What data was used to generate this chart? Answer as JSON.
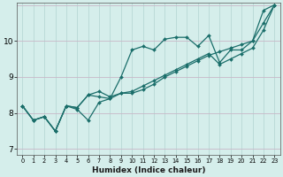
{
  "xlabel": "Humidex (Indice chaleur)",
  "background_color": "#d5eeeb",
  "grid_color_h": "#c8b8c8",
  "grid_color_v": "#b8d8d5",
  "line_color": "#1a6e6a",
  "xlim": [
    -0.5,
    23.5
  ],
  "ylim": [
    6.85,
    11.05
  ],
  "yticks": [
    7,
    8,
    9,
    10
  ],
  "xticks": [
    0,
    1,
    2,
    3,
    4,
    5,
    6,
    7,
    8,
    9,
    10,
    11,
    12,
    13,
    14,
    15,
    16,
    17,
    18,
    19,
    20,
    21,
    22,
    23
  ],
  "series": [
    [
      8.2,
      7.8,
      7.9,
      7.5,
      8.2,
      8.1,
      7.8,
      8.3,
      8.4,
      9.0,
      9.75,
      9.85,
      9.75,
      10.05,
      10.1,
      10.1,
      9.85,
      10.15,
      9.4,
      9.75,
      9.75,
      10.0,
      10.85,
      11.0
    ],
    [
      8.2,
      7.8,
      7.9,
      7.5,
      8.2,
      8.15,
      8.5,
      8.6,
      8.45,
      8.55,
      8.55,
      8.65,
      8.8,
      9.0,
      9.15,
      9.3,
      9.45,
      9.6,
      9.7,
      9.8,
      9.9,
      10.0,
      10.5,
      11.0
    ],
    [
      8.2,
      7.8,
      7.9,
      7.5,
      8.2,
      8.15,
      8.5,
      8.45,
      8.4,
      8.55,
      8.6,
      8.75,
      8.9,
      9.05,
      9.2,
      9.35,
      9.5,
      9.65,
      9.35,
      9.5,
      9.65,
      9.8,
      10.3,
      11.0
    ]
  ]
}
